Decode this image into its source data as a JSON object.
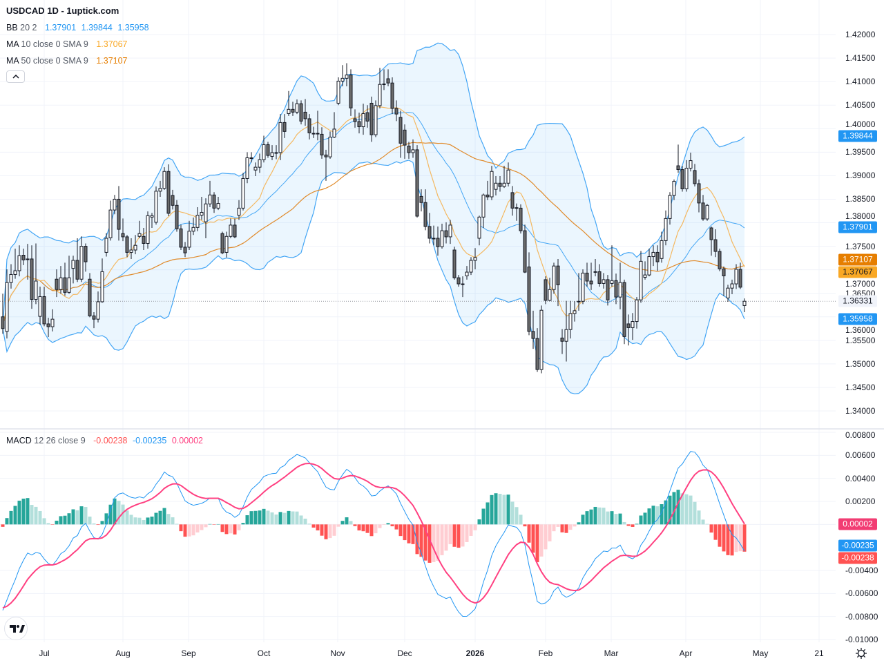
{
  "header": {
    "title": "USDCAD 1D - 1uptick.com"
  },
  "legend": {
    "bb": {
      "name": "BB",
      "params": "20 2",
      "values": [
        "1.37901",
        "1.39844",
        "1.35958"
      ],
      "color": "#2196F3"
    },
    "ma10": {
      "name": "MA",
      "params": "10 close 0 SMA 9",
      "value": "1.37067",
      "color": "#F9A825"
    },
    "ma50": {
      "name": "MA",
      "params": "50 close 0 SMA 9",
      "value": "1.37107",
      "color": "#E67E00"
    },
    "macd": {
      "name": "MACD",
      "params": "12 26 close 9",
      "values": [
        "-0.00238",
        "-0.00235",
        "0.00002"
      ],
      "colors": [
        "#FF5252",
        "#2196F3",
        "#FF4081"
      ]
    }
  },
  "collapse_icon": "chevron-up-icon",
  "price_axis": {
    "ticks": [
      "1.42000",
      "1.41500",
      "1.41000",
      "1.40500",
      "1.40000",
      "1.39500",
      "1.39000",
      "1.38500",
      "1.38000",
      "1.37500",
      "1.37000",
      "1.36500",
      "1.36000",
      "1.35500",
      "1.35000",
      "1.34500",
      "1.34000"
    ],
    "badges": [
      {
        "text": "1.39844",
        "value": 1.39844,
        "bg": "#2196F3",
        "fg": "#ffffff"
      },
      {
        "text": "1.37901",
        "value": 1.37901,
        "bg": "#2196F3",
        "fg": "#ffffff"
      },
      {
        "text": "1.37107",
        "value": 1.37107,
        "bg": "#E67E00",
        "fg": "#ffffff"
      },
      {
        "text": "1.37067",
        "value": 1.37067,
        "bg": "#F9A825",
        "fg": "#131722"
      },
      {
        "text": "1.36331",
        "value": 1.36331,
        "bg": "#F0F3FA",
        "fg": "#131722"
      },
      {
        "text": "1.35958",
        "value": 1.35958,
        "bg": "#2196F3",
        "fg": "#ffffff"
      }
    ]
  },
  "macd_axis": {
    "ticks": [
      "0.00800",
      "0.00600",
      "0.00400",
      "0.00200",
      "-0.00400",
      "-0.00600",
      "-0.00800",
      "-0.01000"
    ],
    "badges": [
      {
        "text": "0.00002",
        "value": 2e-05,
        "bg": "#F23C73",
        "fg": "#ffffff"
      },
      {
        "text": "-0.00235",
        "value": -0.00235,
        "bg": "#2196F3",
        "fg": "#ffffff"
      },
      {
        "text": "-0.00238",
        "value": -0.00238,
        "bg": "#FF5252",
        "fg": "#ffffff"
      }
    ]
  },
  "time_axis": {
    "labels": [
      "Jul",
      "Aug",
      "Sep",
      "Oct",
      "Nov",
      "Dec",
      "2026",
      "Feb",
      "Mar",
      "Apr",
      "May",
      "21"
    ]
  },
  "settings_icon": "gear-icon",
  "logo": {
    "text": "TV"
  },
  "chart_data": {
    "type": "candlestick",
    "symbol": "USDCAD",
    "interval": "1D",
    "price_range": [
      1.34,
      1.42
    ],
    "macd_range": [
      -0.01,
      0.008
    ],
    "grid": true,
    "colors": {
      "up_body": "#FFFFFF",
      "down_body": "#6B6B6B",
      "wick": "#131722",
      "bb_line": "#42A5F5",
      "bb_fill": "rgba(33,150,243,0.09)",
      "ma10": "#F4B860",
      "ma50": "#E08A2A",
      "macd_line": "#2196F3",
      "signal_line": "#FF4081",
      "hist_up_strong": "#26A69A",
      "hist_up_weak": "#B2DFDB",
      "hist_down_strong": "#FF5252",
      "hist_down_weak": "#FFCDD2"
    },
    "indicators": [
      "BB 20 2",
      "MA 10",
      "MA 50",
      "MACD 12 26 9"
    ],
    "last_close": 1.36331,
    "candles_ohlc": [
      [
        1.36,
        1.3649,
        1.3564,
        1.3575
      ],
      [
        1.3569,
        1.3701,
        1.3554,
        1.3673
      ],
      [
        1.3673,
        1.3712,
        1.366,
        1.369
      ],
      [
        1.369,
        1.3745,
        1.3681,
        1.3698
      ],
      [
        1.3698,
        1.3752,
        1.3686,
        1.373
      ],
      [
        1.3731,
        1.3745,
        1.371,
        1.3721
      ],
      [
        1.3722,
        1.3755,
        1.3679,
        1.3723
      ],
      [
        1.3723,
        1.3752,
        1.3617,
        1.3637
      ],
      [
        1.3637,
        1.3756,
        1.3627,
        1.3676
      ],
      [
        1.3601,
        1.3664,
        1.3583,
        1.3643
      ],
      [
        1.3643,
        1.3664,
        1.358,
        1.3585
      ],
      [
        1.3585,
        1.3598,
        1.3557,
        1.3579
      ],
      [
        1.3579,
        1.3616,
        1.3569,
        1.3595
      ],
      [
        1.368,
        1.3701,
        1.3642,
        1.3658
      ],
      [
        1.3658,
        1.3708,
        1.3649,
        1.3683
      ],
      [
        1.3683,
        1.3715,
        1.3645,
        1.3652
      ],
      [
        1.3652,
        1.373,
        1.3649,
        1.3683
      ],
      [
        1.3703,
        1.373,
        1.3671,
        1.372
      ],
      [
        1.372,
        1.3767,
        1.3674,
        1.368
      ],
      [
        1.368,
        1.3771,
        1.3674,
        1.375
      ],
      [
        1.375,
        1.3756,
        1.3696,
        1.3717
      ],
      [
        1.368,
        1.3693,
        1.3599,
        1.3602
      ],
      [
        1.3602,
        1.361,
        1.3576,
        1.3595
      ],
      [
        1.3595,
        1.3654,
        1.3588,
        1.3632
      ],
      [
        1.3632,
        1.3724,
        1.363,
        1.3696
      ],
      [
        1.3737,
        1.3778,
        1.3728,
        1.3767
      ],
      [
        1.3768,
        1.3847,
        1.3762,
        1.3827
      ],
      [
        1.3827,
        1.3859,
        1.3818,
        1.385
      ],
      [
        1.385,
        1.3878,
        1.3762,
        1.3786
      ],
      [
        1.3777,
        1.3809,
        1.3761,
        1.377
      ],
      [
        1.377,
        1.3774,
        1.3727,
        1.3737
      ],
      [
        1.3737,
        1.3767,
        1.3723,
        1.3742
      ],
      [
        1.3742,
        1.3774,
        1.3733,
        1.3752
      ],
      [
        1.3771,
        1.3804,
        1.3767,
        1.3777
      ],
      [
        1.3771,
        1.3789,
        1.3742,
        1.3756
      ],
      [
        1.3756,
        1.3824,
        1.3745,
        1.3815
      ],
      [
        1.3812,
        1.3821,
        1.3789,
        1.3815
      ],
      [
        1.3801,
        1.3877,
        1.3796,
        1.3867
      ],
      [
        1.3867,
        1.3889,
        1.3855,
        1.3873
      ],
      [
        1.3873,
        1.3918,
        1.387,
        1.3909
      ],
      [
        1.3909,
        1.3924,
        1.3814,
        1.382
      ],
      [
        1.3858,
        1.387,
        1.3828,
        1.3837
      ],
      [
        1.3837,
        1.3848,
        1.3781,
        1.3787
      ],
      [
        1.3787,
        1.3796,
        1.3742,
        1.3748
      ],
      [
        1.3748,
        1.3759,
        1.3727,
        1.3736
      ],
      [
        1.3748,
        1.3804,
        1.3742,
        1.3782
      ],
      [
        1.3782,
        1.3811,
        1.3774,
        1.379
      ],
      [
        1.379,
        1.3833,
        1.3782,
        1.3816
      ],
      [
        1.3816,
        1.3855,
        1.3806,
        1.3822
      ],
      [
        1.3802,
        1.3852,
        1.3767,
        1.384
      ],
      [
        1.384,
        1.3889,
        1.3833,
        1.3859
      ],
      [
        1.3859,
        1.3865,
        1.3821,
        1.3831
      ],
      [
        1.3831,
        1.3855,
        1.3827,
        1.3841
      ],
      [
        1.3777,
        1.3781,
        1.3733,
        1.3736
      ],
      [
        1.3737,
        1.3781,
        1.3726,
        1.3771
      ],
      [
        1.3771,
        1.3809,
        1.3767,
        1.3795
      ],
      [
        1.3795,
        1.3809,
        1.3767,
        1.377
      ],
      [
        1.3816,
        1.3848,
        1.3806,
        1.3831
      ],
      [
        1.3831,
        1.3906,
        1.3826,
        1.3894
      ],
      [
        1.3894,
        1.395,
        1.3884,
        1.3938
      ],
      [
        1.3938,
        1.395,
        1.3928,
        1.3937
      ],
      [
        1.3912,
        1.3928,
        1.3899,
        1.3918
      ],
      [
        1.3918,
        1.3947,
        1.3906,
        1.3934
      ],
      [
        1.3934,
        1.3985,
        1.3928,
        1.3966
      ],
      [
        1.3966,
        1.3972,
        1.3938,
        1.3943
      ],
      [
        1.3941,
        1.3965,
        1.3933,
        1.3949
      ],
      [
        1.3949,
        1.3965,
        1.3935,
        1.3948
      ],
      [
        1.3949,
        1.4031,
        1.3933,
        1.4013
      ],
      [
        1.4013,
        1.4031,
        1.398,
        1.3994
      ],
      [
        1.4032,
        1.408,
        1.4027,
        1.4041
      ],
      [
        1.4041,
        1.4057,
        1.4027,
        1.4035
      ],
      [
        1.4035,
        1.4062,
        1.4031,
        1.4053
      ],
      [
        1.4053,
        1.406,
        1.4009,
        1.4016
      ],
      [
        1.4035,
        1.4063,
        1.4006,
        1.4021
      ],
      [
        1.4021,
        1.4031,
        1.3977,
        1.3991
      ],
      [
        1.399,
        1.4004,
        1.398,
        1.3989
      ],
      [
        1.399,
        1.4038,
        1.3975,
        1.3989
      ],
      [
        1.3988,
        1.4003,
        1.3936,
        1.3944
      ],
      [
        1.3944,
        1.3955,
        1.3889,
        1.394
      ],
      [
        1.394,
        1.3994,
        1.3936,
        1.3982
      ],
      [
        1.3982,
        1.4035,
        1.398,
        1.3999
      ],
      [
        1.4054,
        1.4109,
        1.405,
        1.4101
      ],
      [
        1.4101,
        1.4135,
        1.409,
        1.4107
      ],
      [
        1.4107,
        1.4139,
        1.409,
        1.4114
      ],
      [
        1.4114,
        1.4126,
        1.4027,
        1.4044
      ],
      [
        1.4021,
        1.4041,
        1.4002,
        1.4015
      ],
      [
        1.4015,
        1.4034,
        1.399,
        1.4004
      ],
      [
        1.4004,
        1.4053,
        1.3987,
        1.4032
      ],
      [
        1.4034,
        1.405,
        1.4002,
        1.4016
      ],
      [
        1.4054,
        1.4068,
        1.3972,
        1.3987
      ],
      [
        1.3987,
        1.406,
        1.3982,
        1.4049
      ],
      [
        1.4049,
        1.4129,
        1.4043,
        1.4094
      ],
      [
        1.4094,
        1.4126,
        1.4082,
        1.4095
      ],
      [
        1.4106,
        1.4126,
        1.409,
        1.4097
      ],
      [
        1.4097,
        1.4109,
        1.4031,
        1.4043
      ],
      [
        1.4043,
        1.406,
        1.4016,
        1.4031
      ],
      [
        1.4024,
        1.4038,
        1.3938,
        1.3969
      ],
      [
        1.3997,
        1.4009,
        1.3936,
        1.3965
      ],
      [
        1.3963,
        1.3972,
        1.3936,
        1.3949
      ],
      [
        1.3949,
        1.3977,
        1.3938,
        1.3955
      ],
      [
        1.3955,
        1.3965,
        1.3811,
        1.3814
      ],
      [
        1.3856,
        1.3871,
        1.3824,
        1.3843
      ],
      [
        1.3843,
        1.3871,
        1.3784,
        1.3792
      ],
      [
        1.3792,
        1.3821,
        1.3756,
        1.3767
      ],
      [
        1.3767,
        1.3794,
        1.3752,
        1.3766
      ],
      [
        1.3767,
        1.3792,
        1.373,
        1.3749
      ],
      [
        1.3749,
        1.3798,
        1.3745,
        1.3783
      ],
      [
        1.3783,
        1.3801,
        1.3756,
        1.377
      ],
      [
        1.377,
        1.3806,
        1.3755,
        1.3795
      ],
      [
        1.3742,
        1.3749,
        1.3679,
        1.3683
      ],
      [
        1.3683,
        1.3689,
        1.3664,
        1.367
      ],
      [
        1.367,
        1.3686,
        1.3642,
        1.3669
      ],
      [
        1.3687,
        1.3708,
        1.3679,
        1.3695
      ],
      [
        1.3695,
        1.3727,
        1.3689,
        1.372
      ],
      [
        1.372,
        1.3746,
        1.3701,
        1.3726
      ],
      [
        1.3767,
        1.3815,
        1.3752,
        1.3812
      ],
      [
        1.3812,
        1.3862,
        1.3789,
        1.3859
      ],
      [
        1.3859,
        1.3889,
        1.3848,
        1.3855
      ],
      [
        1.3855,
        1.3921,
        1.3848,
        1.3909
      ],
      [
        1.3871,
        1.3899,
        1.3858,
        1.3884
      ],
      [
        1.3884,
        1.3899,
        1.3866,
        1.3877
      ],
      [
        1.3877,
        1.3921,
        1.3874,
        1.3884
      ],
      [
        1.3884,
        1.3928,
        1.3877,
        1.3912
      ],
      [
        1.3864,
        1.3878,
        1.3815,
        1.3831
      ],
      [
        1.3831,
        1.3841,
        1.3804,
        1.3832
      ],
      [
        1.3831,
        1.3839,
        1.3777,
        1.3783
      ],
      [
        1.3783,
        1.3796,
        1.3693,
        1.3695
      ],
      [
        1.3706,
        1.3737,
        1.3561,
        1.3569
      ],
      [
        1.3569,
        1.3613,
        1.3532,
        1.3554
      ],
      [
        1.3554,
        1.3576,
        1.3483,
        1.3488
      ],
      [
        1.3488,
        1.3624,
        1.348,
        1.3614
      ],
      [
        1.3679,
        1.3686,
        1.3627,
        1.3635
      ],
      [
        1.3635,
        1.3683,
        1.3633,
        1.3658
      ],
      [
        1.3658,
        1.3715,
        1.3649,
        1.3708
      ],
      [
        1.3708,
        1.3723,
        1.3623,
        1.3668
      ],
      [
        1.3555,
        1.3574,
        1.3521,
        1.3548
      ],
      [
        1.3548,
        1.3634,
        1.3505,
        1.3573
      ],
      [
        1.3573,
        1.3634,
        1.3554,
        1.3607
      ],
      [
        1.3607,
        1.3633,
        1.359,
        1.3613
      ],
      [
        1.3633,
        1.3693,
        1.3613,
        1.3632
      ],
      [
        1.3633,
        1.3701,
        1.3627,
        1.3693
      ],
      [
        1.3693,
        1.3715,
        1.3664,
        1.3676
      ],
      [
        1.3676,
        1.3715,
        1.3657,
        1.367
      ],
      [
        1.3696,
        1.3723,
        1.3686,
        1.3695
      ],
      [
        1.3696,
        1.3712,
        1.3664,
        1.3671
      ],
      [
        1.3671,
        1.3693,
        1.366,
        1.3679
      ],
      [
        1.3679,
        1.3689,
        1.3624,
        1.3636
      ],
      [
        1.3671,
        1.3752,
        1.3664,
        1.3677
      ],
      [
        1.3677,
        1.3692,
        1.3627,
        1.3642
      ],
      [
        1.3642,
        1.3715,
        1.3616,
        1.3673
      ],
      [
        1.3673,
        1.3679,
        1.3542,
        1.3558
      ],
      [
        1.3585,
        1.3605,
        1.3539,
        1.3577
      ],
      [
        1.3577,
        1.3608,
        1.3551,
        1.359
      ],
      [
        1.359,
        1.3642,
        1.3575,
        1.3636
      ],
      [
        1.3636,
        1.374,
        1.363,
        1.3718
      ],
      [
        1.3684,
        1.3718,
        1.3679,
        1.3689
      ],
      [
        1.3689,
        1.3745,
        1.3686,
        1.3728
      ],
      [
        1.3728,
        1.3752,
        1.3708,
        1.3737
      ],
      [
        1.3737,
        1.3752,
        1.3698,
        1.3717
      ],
      [
        1.3724,
        1.3781,
        1.3715,
        1.3762
      ],
      [
        1.3762,
        1.3826,
        1.3752,
        1.3809
      ],
      [
        1.3809,
        1.3865,
        1.3796,
        1.3858
      ],
      [
        1.3858,
        1.3892,
        1.3848,
        1.3888
      ],
      [
        1.3921,
        1.3966,
        1.3906,
        1.3913
      ],
      [
        1.3913,
        1.3921,
        1.3866,
        1.3872
      ],
      [
        1.3872,
        1.3933,
        1.3866,
        1.3916
      ],
      [
        1.3916,
        1.3949,
        1.3909,
        1.3932
      ],
      [
        1.3911,
        1.3925,
        1.3877,
        1.3883
      ],
      [
        1.3883,
        1.3892,
        1.3822,
        1.3842
      ],
      [
        1.3842,
        1.3859,
        1.3804,
        1.3808
      ],
      [
        1.3808,
        1.384,
        1.3804,
        1.3837
      ],
      [
        1.3789,
        1.3792,
        1.373,
        1.3764
      ],
      [
        1.3764,
        1.3786,
        1.3727,
        1.3739
      ],
      [
        1.3739,
        1.3745,
        1.3697,
        1.3702
      ],
      [
        1.3702,
        1.3707,
        1.3644,
        1.3687
      ],
      [
        1.364,
        1.3668,
        1.3632,
        1.3661
      ],
      [
        1.3661,
        1.3679,
        1.3648,
        1.367
      ],
      [
        1.367,
        1.3712,
        1.3659,
        1.3701
      ],
      [
        1.3701,
        1.3715,
        1.3659,
        1.3663
      ],
      [
        1.3624,
        1.3639,
        1.361,
        1.36331
      ]
    ]
  }
}
